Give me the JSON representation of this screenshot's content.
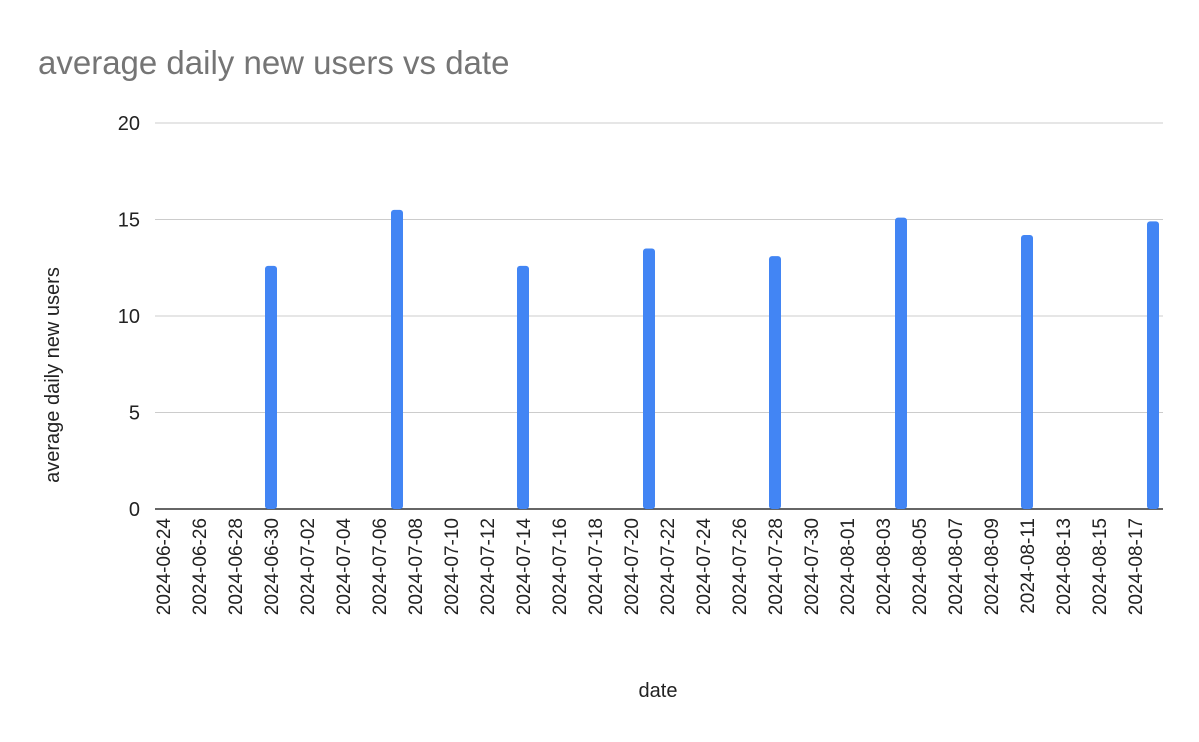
{
  "chart_data": {
    "type": "bar",
    "title": "average daily new users vs date",
    "x_label": "date",
    "y_label": "average daily new users",
    "x": [
      "2024-06-30",
      "2024-07-07",
      "2024-07-14",
      "2024-07-21",
      "2024-07-28",
      "2024-08-04",
      "2024-08-11",
      "2024-08-18"
    ],
    "values": [
      12.6,
      15.5,
      12.6,
      13.5,
      13.1,
      15.1,
      14.2,
      14.9
    ],
    "color": "#4285f4",
    "xticks": [
      "2024-06-24",
      "2024-06-26",
      "2024-06-28",
      "2024-06-30",
      "2024-07-02",
      "2024-07-04",
      "2024-07-06",
      "2024-07-08",
      "2024-07-10",
      "2024-07-12",
      "2024-07-14",
      "2024-07-16",
      "2024-07-18",
      "2024-07-20",
      "2024-07-22",
      "2024-07-24",
      "2024-07-26",
      "2024-07-28",
      "2024-07-30",
      "2024-08-01",
      "2024-08-03",
      "2024-08-05",
      "2024-08-07",
      "2024-08-09",
      "2024-08-11",
      "2024-08-13",
      "2024-08-15",
      "2024-08-17"
    ],
    "ylim": [
      0,
      20
    ],
    "yticks": [
      0,
      5,
      10,
      15,
      20
    ],
    "grid": true
  }
}
